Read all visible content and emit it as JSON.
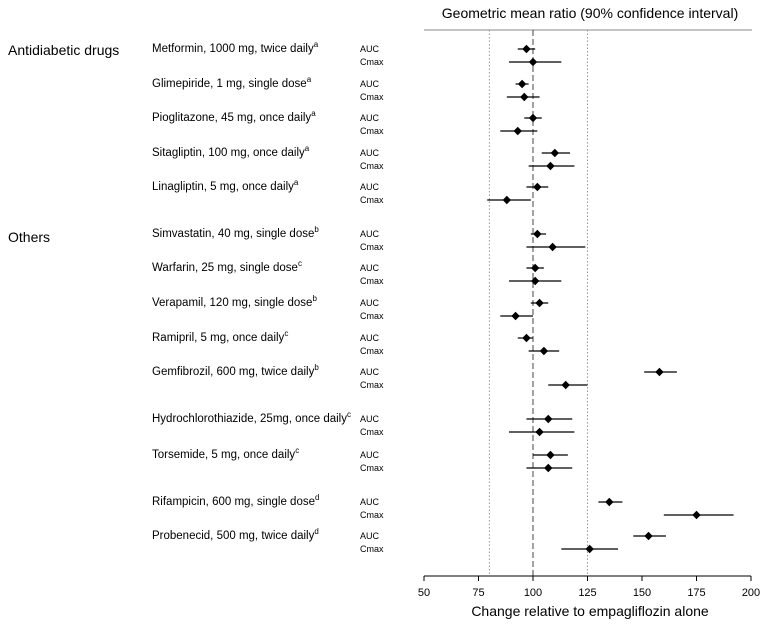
{
  "chart_data": {
    "type": "forest",
    "title": "Geometric mean ratio (90% confidence interval)",
    "xlabel": "Change relative to empagliflozin alone",
    "xlim": [
      50,
      200
    ],
    "xticks": [
      "50",
      "75",
      "100",
      "125",
      "150",
      "175",
      "200"
    ],
    "reference_line": 100,
    "bound_lines": [
      80,
      125
    ],
    "groups": [
      {
        "label": "Antidiabetic drugs",
        "drugs": [
          {
            "name": "Metformin, 1000 mg, twice daily",
            "sup": "a",
            "rows": [
              {
                "param": "AUC",
                "est": 97,
                "lo": 93,
                "hi": 101
              },
              {
                "param": "Cmax",
                "est": 100,
                "lo": 89,
                "hi": 113
              }
            ]
          },
          {
            "name": "Glimepiride, 1 mg, single dose",
            "sup": "a",
            "rows": [
              {
                "param": "AUC",
                "est": 95,
                "lo": 92,
                "hi": 98
              },
              {
                "param": "Cmax",
                "est": 96,
                "lo": 88,
                "hi": 103
              }
            ]
          },
          {
            "name": "Pioglitazone, 45 mg, once daily",
            "sup": "a",
            "rows": [
              {
                "param": "AUC",
                "est": 100,
                "lo": 96,
                "hi": 104
              },
              {
                "param": "Cmax",
                "est": 93,
                "lo": 85,
                "hi": 102
              }
            ]
          },
          {
            "name": "Sitagliptin, 100 mg, once daily",
            "sup": "a",
            "rows": [
              {
                "param": "AUC",
                "est": 110,
                "lo": 104,
                "hi": 117
              },
              {
                "param": "Cmax",
                "est": 108,
                "lo": 98,
                "hi": 119
              }
            ]
          },
          {
            "name": "Linagliptin, 5 mg, once daily",
            "sup": "a",
            "rows": [
              {
                "param": "AUC",
                "est": 102,
                "lo": 97,
                "hi": 107
              },
              {
                "param": "Cmax",
                "est": 88,
                "lo": 79,
                "hi": 99
              }
            ]
          }
        ]
      },
      {
        "label": "Others",
        "drugs": [
          {
            "name": "Simvastatin, 40 mg, single dose",
            "sup": "b",
            "rows": [
              {
                "param": "AUC",
                "est": 102,
                "lo": 99,
                "hi": 106
              },
              {
                "param": "Cmax",
                "est": 109,
                "lo": 97,
                "hi": 124
              }
            ]
          },
          {
            "name": "Warfarin, 25 mg, single dose",
            "sup": "c",
            "rows": [
              {
                "param": "AUC",
                "est": 101,
                "lo": 97,
                "hi": 105
              },
              {
                "param": "Cmax",
                "est": 101,
                "lo": 89,
                "hi": 113
              }
            ]
          },
          {
            "name": "Verapamil, 120 mg, single dose",
            "sup": "b",
            "rows": [
              {
                "param": "AUC",
                "est": 103,
                "lo": 99,
                "hi": 107
              },
              {
                "param": "Cmax",
                "est": 92,
                "lo": 85,
                "hi": 100
              }
            ]
          },
          {
            "name": "Ramipril, 5 mg, once daily",
            "sup": "c",
            "rows": [
              {
                "param": "AUC",
                "est": 97,
                "lo": 93,
                "hi": 100
              },
              {
                "param": "Cmax",
                "est": 105,
                "lo": 98,
                "hi": 112
              }
            ]
          },
          {
            "name": "Gemfibrozil, 600 mg, twice daily",
            "sup": "b",
            "rows": [
              {
                "param": "AUC",
                "est": 158,
                "lo": 151,
                "hi": 166
              },
              {
                "param": "Cmax",
                "est": 115,
                "lo": 107,
                "hi": 125
              }
            ]
          },
          {
            "name": "Hydrochlorothiazide, 25mg, once daily",
            "sup": "c",
            "rows": [
              {
                "param": "AUC",
                "est": 107,
                "lo": 97,
                "hi": 118
              },
              {
                "param": "Cmax",
                "est": 103,
                "lo": 89,
                "hi": 119
              }
            ]
          },
          {
            "name": "Torsemide, 5 mg, once daily",
            "sup": "c",
            "rows": [
              {
                "param": "AUC",
                "est": 108,
                "lo": 100,
                "hi": 116
              },
              {
                "param": "Cmax",
                "est": 107,
                "lo": 97,
                "hi": 118
              }
            ]
          },
          {
            "name": "Rifampicin, 600 mg, single dose",
            "sup": "d",
            "rows": [
              {
                "param": "AUC",
                "est": 135,
                "lo": 130,
                "hi": 141
              },
              {
                "param": "Cmax",
                "est": 175,
                "lo": 160,
                "hi": 192
              }
            ]
          },
          {
            "name": "Probenecid, 500 mg, twice daily",
            "sup": "d",
            "rows": [
              {
                "param": "AUC",
                "est": 153,
                "lo": 146,
                "hi": 161
              },
              {
                "param": "Cmax",
                "est": 126,
                "lo": 113,
                "hi": 139
              }
            ]
          }
        ]
      }
    ]
  }
}
